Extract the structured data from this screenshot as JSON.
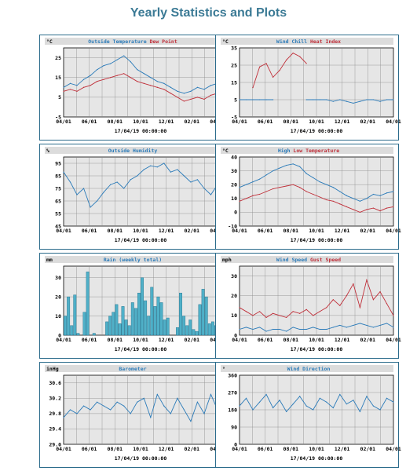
{
  "page": {
    "title": "Yearly Statistics and Plots"
  },
  "colors": {
    "blue": "#2b7bb9",
    "red": "#c0303a",
    "title": "#3b7a95",
    "bar_fill": "#4fb0c8"
  },
  "date_label": "17/04/19 00:00:00",
  "x_ticks": [
    "04/01",
    "06/01",
    "08/01",
    "10/01",
    "12/01",
    "02/01",
    "04/01"
  ],
  "chart_data": [
    {
      "id": "outside-temp",
      "type": "line",
      "unit": "°C",
      "title_parts": [
        {
          "text": "Outside Temperature",
          "color": "blue"
        },
        {
          "text": "Dew Point",
          "color": "red"
        }
      ],
      "yticks": [
        "25",
        "15",
        "5",
        "-5"
      ],
      "ylim": [
        -5,
        30
      ],
      "series": [
        {
          "name": "Outside Temperature",
          "color": "blue",
          "values": [
            10,
            12,
            11,
            14,
            16,
            19,
            21,
            22,
            24,
            26,
            23,
            19,
            17,
            15,
            13,
            12,
            10,
            8,
            7,
            8,
            10,
            9,
            11,
            12
          ]
        },
        {
          "name": "Dew Point",
          "color": "red",
          "values": [
            8,
            9,
            8,
            10,
            11,
            13,
            14,
            15,
            16,
            17,
            15,
            13,
            12,
            11,
            10,
            9,
            7,
            5,
            3,
            4,
            5,
            4,
            6,
            7
          ]
        }
      ]
    },
    {
      "id": "wind-chill",
      "type": "line",
      "unit": "°C",
      "title_parts": [
        {
          "text": "Wind Chill",
          "color": "blue"
        },
        {
          "text": "Heat Index",
          "color": "red"
        }
      ],
      "yticks": [
        "35",
        "25",
        "15",
        "5",
        "-5"
      ],
      "ylim": [
        -5,
        35
      ],
      "series": [
        {
          "name": "Wind Chill",
          "color": "blue",
          "values": [
            5,
            5,
            5,
            5,
            5,
            5,
            null,
            null,
            null,
            null,
            5,
            5,
            5,
            5,
            4,
            5,
            4,
            3,
            4,
            5,
            5,
            4,
            5,
            5
          ]
        },
        {
          "name": "Heat Index",
          "color": "red",
          "values": [
            null,
            null,
            12,
            24,
            26,
            18,
            22,
            28,
            32,
            30,
            26,
            null,
            null,
            null,
            null,
            null,
            null,
            null,
            null,
            null,
            null,
            null,
            null,
            null
          ]
        }
      ]
    },
    {
      "id": "humidity",
      "type": "line",
      "unit": "%",
      "title_parts": [
        {
          "text": "Outside Humidity",
          "color": "blue"
        }
      ],
      "yticks": [
        "95",
        "85",
        "75",
        "65",
        "55",
        "45"
      ],
      "ylim": [
        45,
        100
      ],
      "series": [
        {
          "name": "Outside Humidity",
          "color": "blue",
          "values": [
            88,
            80,
            70,
            75,
            60,
            65,
            72,
            78,
            80,
            75,
            82,
            85,
            90,
            93,
            92,
            95,
            88,
            90,
            85,
            80,
            82,
            75,
            70,
            78
          ]
        }
      ]
    },
    {
      "id": "high-low-temp",
      "type": "line",
      "unit": "°C",
      "title_parts": [
        {
          "text": "High",
          "color": "blue"
        },
        {
          "text": "Low Temperature",
          "color": "red"
        }
      ],
      "yticks": [
        "40",
        "30",
        "20",
        "10",
        "0",
        "-10"
      ],
      "ylim": [
        -10,
        40
      ],
      "series": [
        {
          "name": "High",
          "color": "blue",
          "values": [
            18,
            20,
            22,
            24,
            27,
            30,
            32,
            34,
            35,
            33,
            28,
            25,
            22,
            20,
            18,
            15,
            12,
            10,
            8,
            10,
            13,
            12,
            14,
            15
          ]
        },
        {
          "name": "Low Temperature",
          "color": "red",
          "values": [
            8,
            10,
            12,
            13,
            15,
            17,
            18,
            19,
            20,
            18,
            15,
            13,
            11,
            9,
            8,
            6,
            4,
            2,
            0,
            2,
            3,
            1,
            3,
            4
          ]
        }
      ]
    },
    {
      "id": "rain",
      "type": "bar",
      "unit": "mm",
      "title_parts": [
        {
          "text": "Rain (weekly total)",
          "color": "blue"
        }
      ],
      "yticks": [
        "30",
        "20",
        "10",
        "0"
      ],
      "ylim": [
        0,
        36
      ],
      "values": [
        10,
        20,
        5,
        21,
        1,
        0,
        12,
        33,
        0,
        1,
        0,
        0,
        0,
        7,
        10,
        12,
        16,
        6,
        15,
        8,
        5,
        17,
        14,
        22,
        30,
        18,
        10,
        25,
        15,
        20,
        17,
        8,
        9,
        0,
        0,
        4,
        22,
        10,
        5,
        8,
        3,
        2,
        16,
        24,
        20,
        6,
        7,
        5
      ]
    },
    {
      "id": "wind-speed",
      "type": "line",
      "unit": "mph",
      "title_parts": [
        {
          "text": "Wind Speed",
          "color": "blue"
        },
        {
          "text": "Gust Speed",
          "color": "red"
        }
      ],
      "yticks": [
        "30",
        "20",
        "10",
        "0"
      ],
      "ylim": [
        0,
        35
      ],
      "series": [
        {
          "name": "Wind Speed",
          "color": "blue",
          "values": [
            3,
            4,
            3,
            4,
            2,
            3,
            3,
            2,
            4,
            3,
            3,
            4,
            3,
            3,
            4,
            5,
            4,
            5,
            6,
            5,
            4,
            5,
            6,
            4
          ]
        },
        {
          "name": "Gust Speed",
          "color": "red",
          "values": [
            14,
            12,
            10,
            12,
            9,
            11,
            10,
            9,
            12,
            11,
            13,
            10,
            12,
            14,
            18,
            15,
            20,
            26,
            14,
            28,
            18,
            22,
            16,
            10
          ]
        }
      ]
    },
    {
      "id": "barometer",
      "type": "line",
      "unit": "inHg",
      "title_parts": [
        {
          "text": "Barometer",
          "color": "blue"
        }
      ],
      "yticks": [
        "30.6",
        "30.2",
        "29.8",
        "29.4",
        "29.0"
      ],
      "ylim": [
        29.0,
        30.8
      ],
      "series": [
        {
          "name": "Barometer",
          "color": "blue",
          "values": [
            29.7,
            29.9,
            29.8,
            30.0,
            29.9,
            30.1,
            30.0,
            29.9,
            30.1,
            30.0,
            29.8,
            30.1,
            30.2,
            29.7,
            30.3,
            30.0,
            29.8,
            30.2,
            29.9,
            29.6,
            30.1,
            29.8,
            30.3,
            29.9
          ]
        }
      ]
    },
    {
      "id": "wind-direction",
      "type": "line",
      "unit": "°",
      "title_parts": [
        {
          "text": "Wind Direction",
          "color": "blue"
        }
      ],
      "yticks": [
        "360",
        "270",
        "180",
        "90",
        "0"
      ],
      "ylim": [
        0,
        360
      ],
      "series": [
        {
          "name": "Wind Direction",
          "color": "blue",
          "values": [
            200,
            240,
            180,
            220,
            260,
            190,
            230,
            170,
            210,
            250,
            200,
            180,
            240,
            220,
            190,
            260,
            210,
            230,
            170,
            250,
            200,
            180,
            240,
            220
          ]
        }
      ]
    }
  ]
}
